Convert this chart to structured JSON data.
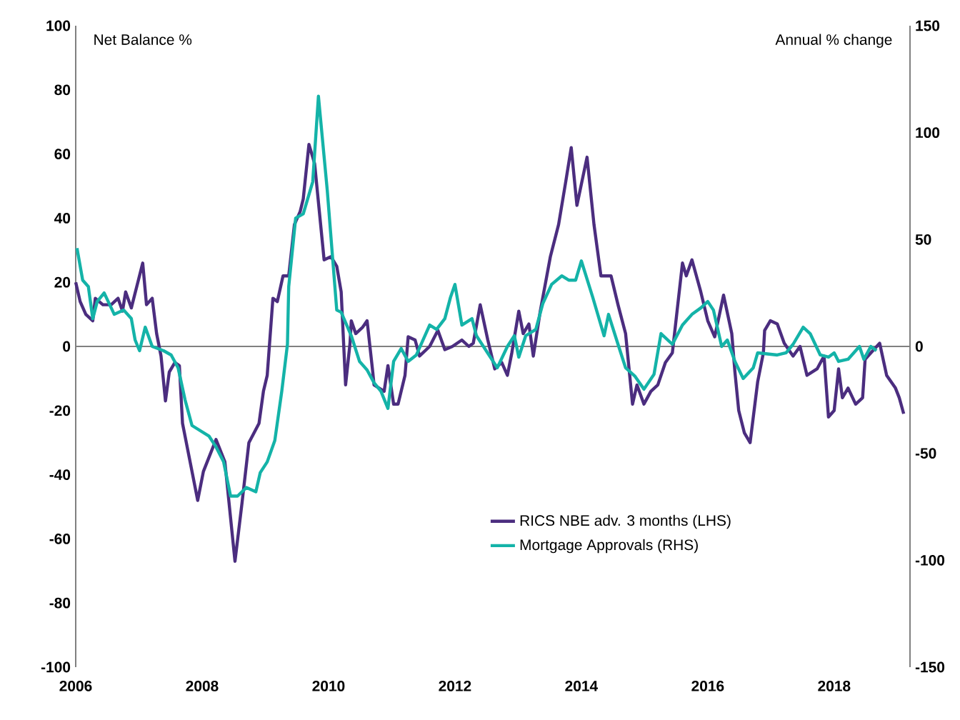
{
  "chart_data": {
    "type": "line",
    "ylabel": "Net Balance %",
    "y2label": "Annual % change",
    "xlim": [
      2006,
      2019.2
    ],
    "xticks": [
      2006,
      2008,
      2010,
      2012,
      2014,
      2016,
      2018
    ],
    "ylim": [
      -100,
      100
    ],
    "yticks": [
      -100,
      -80,
      -60,
      -40,
      -20,
      0,
      20,
      40,
      60,
      80,
      100
    ],
    "y2lim": [
      -150,
      150
    ],
    "y2ticks": [
      -150,
      -100,
      -50,
      0,
      50,
      100,
      150
    ],
    "legend": "bottom right",
    "series": [
      {
        "name": "RICS NBE adv. 3 months (LHS)",
        "color": "#4b2d7f",
        "axis": "y",
        "x": [
          2006.0,
          2006.07,
          2006.16,
          2006.27,
          2006.31,
          2006.43,
          2006.56,
          2006.67,
          2006.74,
          2006.79,
          2006.88,
          2006.97,
          2007.06,
          2007.12,
          2007.21,
          2007.28,
          2007.35,
          2007.42,
          2007.48,
          2007.57,
          2007.64,
          2007.69,
          2007.8,
          2007.93,
          2008.02,
          2008.22,
          2008.36,
          2008.52,
          2008.63,
          2008.74,
          2008.9,
          2008.97,
          2009.03,
          2009.12,
          2009.19,
          2009.28,
          2009.37,
          2009.46,
          2009.55,
          2009.6,
          2009.69,
          2009.78,
          2009.93,
          2010.04,
          2010.13,
          2010.2,
          2010.27,
          2010.34,
          2010.36,
          2010.43,
          2010.54,
          2010.61,
          2010.7,
          2010.72,
          2010.88,
          2010.94,
          2011.03,
          2011.1,
          2011.21,
          2011.26,
          2011.37,
          2011.44,
          2011.6,
          2011.73,
          2011.84,
          2011.96,
          2012.11,
          2012.22,
          2012.29,
          2012.4,
          2012.52,
          2012.63,
          2012.74,
          2012.83,
          2012.9,
          2013.01,
          2013.08,
          2013.17,
          2013.24,
          2013.35,
          2013.51,
          2013.64,
          2013.75,
          2013.84,
          2013.93,
          2014.09,
          2014.2,
          2014.31,
          2014.47,
          2014.58,
          2014.7,
          2014.81,
          2014.88,
          2014.99,
          2015.1,
          2015.21,
          2015.33,
          2015.44,
          2015.6,
          2015.66,
          2015.75,
          2015.89,
          2016.0,
          2016.11,
          2016.25,
          2016.38,
          2016.43,
          2016.49,
          2016.58,
          2016.67,
          2016.79,
          2016.88,
          2016.9,
          2016.99,
          2017.1,
          2017.21,
          2017.35,
          2017.46,
          2017.57,
          2017.73,
          2017.84,
          2017.91,
          2018.0,
          2018.07,
          2018.13,
          2018.22,
          2018.34,
          2018.45,
          2018.49,
          2018.58,
          2018.72,
          2018.83,
          2018.97,
          2019.03,
          2019.1
        ],
        "values": [
          20,
          14,
          10,
          8,
          15,
          13,
          13,
          15,
          11,
          17,
          12,
          19,
          26,
          13,
          15,
          4,
          -3,
          -17,
          -8,
          -5,
          -6,
          -24,
          -35,
          -48,
          -39,
          -29,
          -36,
          -67,
          -49,
          -30,
          -24,
          -14,
          -9,
          15,
          14,
          22,
          22,
          38,
          42,
          46,
          63,
          57,
          27,
          28,
          25,
          17,
          -12,
          1,
          8,
          4,
          6,
          8,
          -8,
          -12,
          -14,
          -6,
          -18,
          -18,
          -9,
          3,
          2,
          -3,
          0,
          5,
          -1,
          0,
          2,
          0,
          1,
          13,
          2,
          -7,
          -5,
          -9,
          -2,
          11,
          4,
          7,
          -3,
          11,
          28,
          38,
          51,
          62,
          44,
          59,
          38,
          22,
          22,
          13,
          4,
          -18,
          -12,
          -18,
          -14,
          -12,
          -5,
          -2,
          26,
          22,
          27,
          17,
          8,
          3,
          16,
          4,
          -8,
          -20,
          -27,
          -30,
          -11,
          -2,
          5,
          8,
          7,
          1,
          -3,
          0,
          -9,
          -7,
          -3,
          -22,
          -20,
          -7,
          -16,
          -13,
          -18,
          -16,
          -4,
          -2,
          1,
          -9,
          -13,
          -16,
          -21
        ]
      },
      {
        "name": "Mortgage Approvals (RHS)",
        "color": "#14b3a8",
        "axis": "y2",
        "x": [
          2006.02,
          2006.11,
          2006.2,
          2006.27,
          2006.34,
          2006.45,
          2006.61,
          2006.76,
          2006.88,
          2006.94,
          2007.01,
          2007.1,
          2007.21,
          2007.39,
          2007.51,
          2007.62,
          2007.73,
          2007.84,
          2008.11,
          2008.22,
          2008.34,
          2008.45,
          2008.56,
          2008.7,
          2008.85,
          2008.92,
          2009.03,
          2009.15,
          2009.26,
          2009.35,
          2009.37,
          2009.48,
          2009.6,
          2009.75,
          2009.84,
          2009.98,
          2010.13,
          2010.2,
          2010.36,
          2010.49,
          2010.61,
          2010.72,
          2010.83,
          2010.94,
          2011.03,
          2011.15,
          2011.26,
          2011.39,
          2011.6,
          2011.71,
          2011.84,
          2011.93,
          2012.0,
          2012.11,
          2012.27,
          2012.34,
          2012.56,
          2012.67,
          2012.83,
          2012.94,
          2013.01,
          2013.12,
          2013.28,
          2013.39,
          2013.53,
          2013.69,
          2013.8,
          2013.91,
          2014.0,
          2014.18,
          2014.36,
          2014.43,
          2014.58,
          2014.7,
          2014.85,
          2014.99,
          2015.15,
          2015.26,
          2015.44,
          2015.6,
          2015.75,
          2015.89,
          2016.0,
          2016.09,
          2016.22,
          2016.31,
          2016.43,
          2016.56,
          2016.72,
          2016.79,
          2017.1,
          2017.24,
          2017.35,
          2017.51,
          2017.62,
          2017.78,
          2017.91,
          2018.0,
          2018.07,
          2018.22,
          2018.4,
          2018.47,
          2018.58,
          2018.67
        ],
        "values": [
          46,
          31,
          28,
          13,
          21,
          25,
          15,
          17,
          13,
          3,
          -2,
          9,
          0,
          -2,
          -4,
          -10,
          -25,
          -37,
          -42,
          -47,
          -54,
          -70,
          -70,
          -66,
          -68,
          -59,
          -54,
          -44,
          -21,
          1,
          28,
          60,
          62,
          77,
          117,
          73,
          17,
          16,
          5,
          -7,
          -11,
          -17,
          -21,
          -29,
          -7,
          -1,
          -7,
          -4,
          10,
          8,
          13,
          23,
          29,
          10,
          13,
          5,
          -5,
          -10,
          0,
          5,
          -5,
          5,
          8,
          20,
          29,
          33,
          31,
          31,
          40,
          23,
          5,
          15,
          1,
          -10,
          -14,
          -20,
          -13,
          6,
          1,
          10,
          15,
          18,
          21,
          17,
          0,
          3,
          -7,
          -15,
          -10,
          -3,
          -4,
          -3,
          1,
          9,
          6,
          -4,
          -5,
          -3,
          -7,
          -6,
          0,
          -6,
          0,
          -2
        ]
      }
    ]
  }
}
